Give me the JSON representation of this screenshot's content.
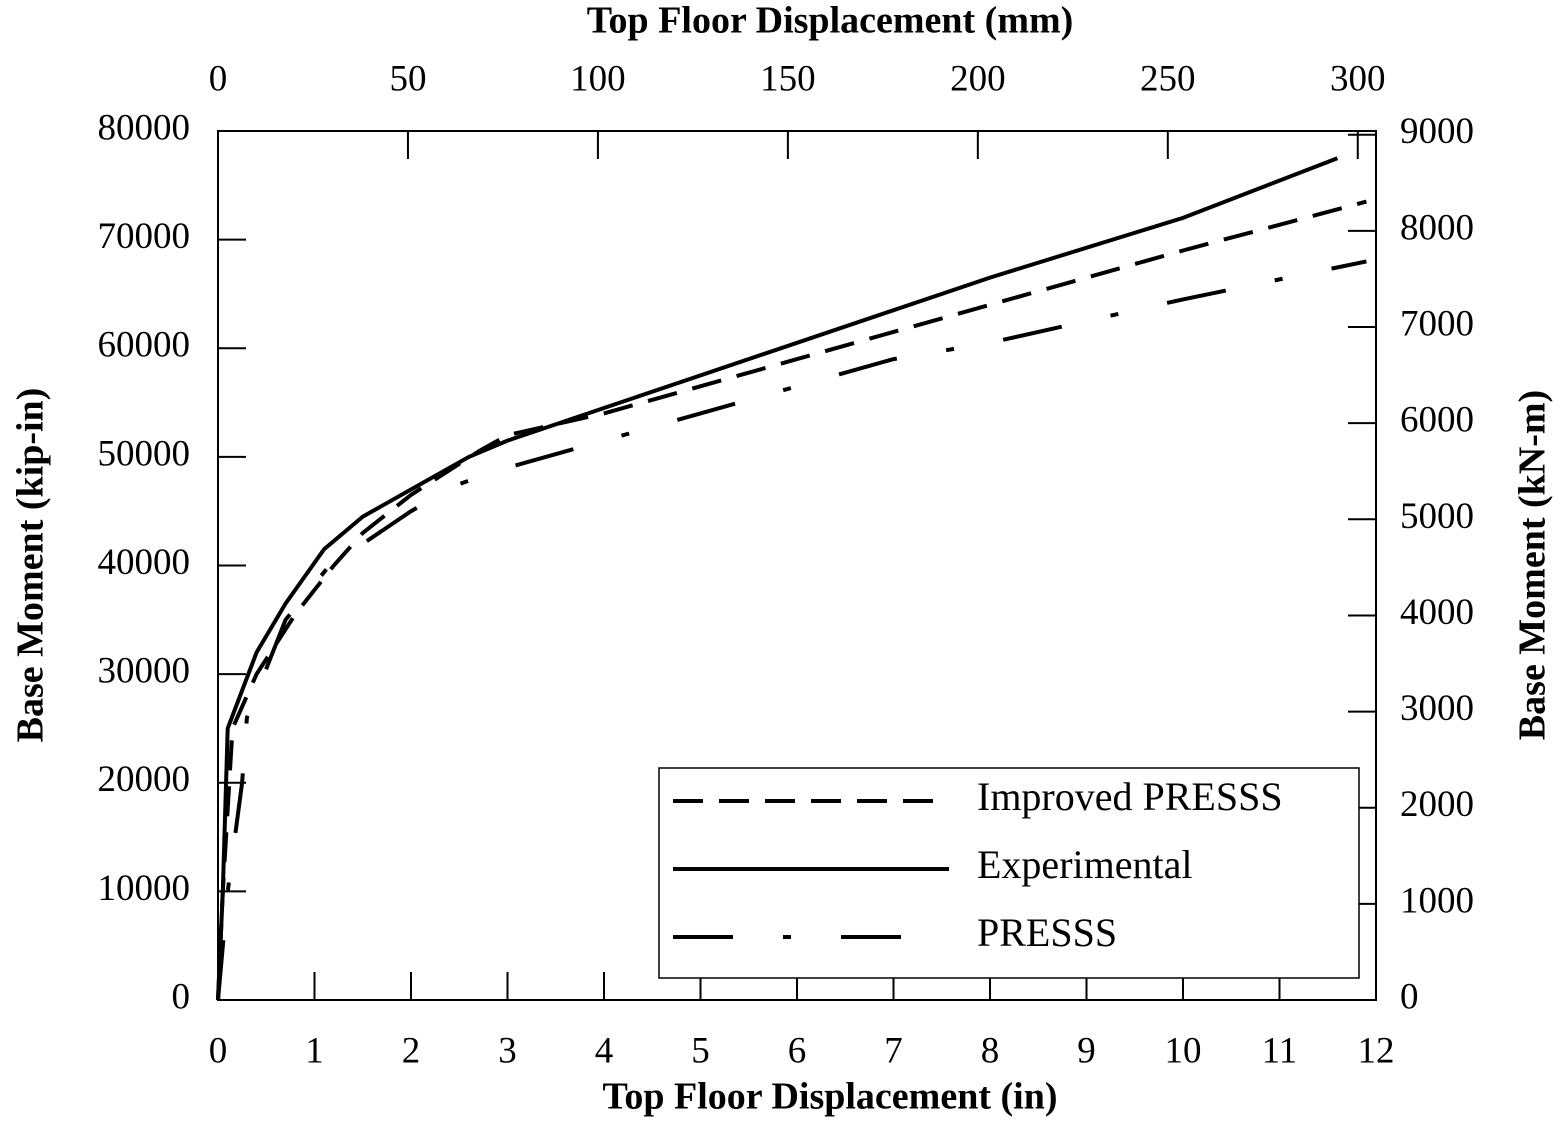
{
  "chart_data": {
    "type": "line",
    "xlabel": "Top Floor Displacement  (in)",
    "x2label": "Top Floor Displacement (mm)",
    "ylabel": "Base Moment (kip-in)",
    "y2label": "Base Moment (kN-m)",
    "xlim": [
      0,
      12
    ],
    "xticks": [
      0,
      1,
      2,
      3,
      4,
      5,
      6,
      7,
      8,
      9,
      10,
      11,
      12
    ],
    "x2lim": [
      0,
      304.8
    ],
    "x2ticks": [
      0,
      50,
      100,
      150,
      200,
      250,
      300
    ],
    "ylim": [
      0,
      80000
    ],
    "yticks": [
      0,
      10000,
      20000,
      30000,
      40000,
      50000,
      60000,
      70000,
      80000
    ],
    "y2lim": [
      0,
      9039
    ],
    "y2ticks": [
      0,
      1000,
      2000,
      3000,
      4000,
      5000,
      6000,
      7000,
      8000,
      9000
    ],
    "legend": "lower right",
    "series": [
      {
        "name": "Improved PRESSS",
        "color": "#000000",
        "style": "dashed",
        "x": [
          0,
          0.05,
          0.15,
          0.4,
          0.8,
          1.2,
          1.5,
          2,
          2.7,
          3,
          4,
          6,
          8,
          10,
          11.9
        ],
        "values": [
          0,
          10000,
          25000,
          30000,
          35500,
          40000,
          43000,
          46500,
          50500,
          52000,
          54000,
          59000,
          64000,
          69000,
          73500
        ]
      },
      {
        "name": "Experimental",
        "color": "#000000",
        "style": "solid",
        "x": [
          0,
          0.05,
          0.1,
          0.4,
          0.7,
          1.1,
          1.5,
          2,
          2.6,
          3,
          4,
          6,
          8,
          10,
          11.6
        ],
        "values": [
          0,
          10000,
          25000,
          32000,
          36500,
          41500,
          44500,
          47000,
          50000,
          51500,
          54500,
          60500,
          66500,
          72000,
          77500
        ]
      },
      {
        "name": "PRESSS",
        "color": "#000000",
        "style": "dashdot",
        "x": [
          0,
          0.1,
          0.25,
          0.3,
          0.7,
          1.2,
          1.5,
          2,
          2.5,
          3,
          4,
          5,
          6,
          7,
          8,
          10,
          11.9
        ],
        "values": [
          0,
          10000,
          20000,
          26000,
          35000,
          40500,
          42000,
          45000,
          47500,
          49000,
          51500,
          54000,
          56500,
          59000,
          60500,
          64500,
          68000
        ]
      }
    ]
  }
}
